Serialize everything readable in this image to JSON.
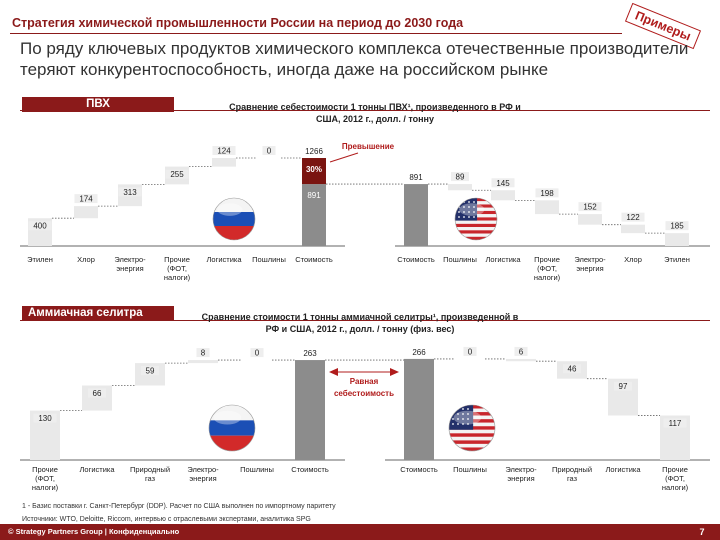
{
  "header": {
    "title": "Стратегия химической промышленности России на период до 2030 года",
    "subtitle": "По ряду ключевых продуктов химического комплекса отечественные производители теряют конкурентоспособность, иногда даже на российском рынке",
    "stamp": "Примеры"
  },
  "sections": {
    "pvc_label": "ПВХ",
    "ammonium_label": "Аммиачная селитра"
  },
  "colors": {
    "brand": "#8b1a1a",
    "bar_light": "#e9e9e9",
    "bar_dark": "#8c8c8c",
    "excess": "#7a1410"
  },
  "icons": [
    "russia-flag-icon",
    "usa-flag-icon"
  ],
  "chart_data": [
    {
      "id": "pvc",
      "type": "waterfall",
      "title": "Сравнение себестоимости 1 тонны ПВХ¹, произведенного в РФ и США, 2012 г., долл. / тонну",
      "annotation": "Превышение",
      "excess_label": "30%",
      "ru": {
        "categories": [
          "Этилен",
          "Хлор",
          "Электро-энергия",
          "Прочие (ФОТ, налоги)",
          "Логистика",
          "Пошлины",
          "Стоимость"
        ],
        "values": [
          400,
          174,
          313,
          255,
          124,
          0,
          1266
        ],
        "total_base": 891,
        "total_excess_label": "30%"
      },
      "us": {
        "categories": [
          "Стоимость",
          "Пошлины",
          "Логистика",
          "Прочие (ФОТ, налоги)",
          "Электро-энергия",
          "Хлор",
          "Этилен"
        ],
        "values": [
          891,
          89,
          145,
          198,
          152,
          122,
          185
        ]
      }
    },
    {
      "id": "ammonium_nitrate",
      "type": "waterfall",
      "title": "Сравнение стоимости 1 тонны аммиачной селитры¹, произведенной в РФ и США, 2012 г., долл. / тонну (физ. вес)",
      "annotation": "Равная себестоимость",
      "ru": {
        "categories": [
          "Прочие (ФОТ, налоги)",
          "Логистика",
          "Природный газ",
          "Электро-энергия",
          "Пошлины",
          "Стоимость"
        ],
        "values": [
          130,
          66,
          59,
          8,
          0,
          263
        ]
      },
      "us": {
        "categories": [
          "Стоимость",
          "Пошлины",
          "Электро-энергия",
          "Природный газ",
          "Логистика",
          "Прочие (ФОТ, налоги)"
        ],
        "values": [
          266,
          0,
          6,
          46,
          97,
          117
        ]
      }
    }
  ],
  "footnote": "1 - Базис поставки г. Санкт-Петербург (DDP). Расчет по США выполнен по импортному паритету",
  "sources": "Источники: WTO, Deloitte, Riccom, интервью с отраслевыми экспертами, аналитика SPG",
  "footer": {
    "text": "© Strategy Partners Group | Конфиденциально",
    "page": "7"
  }
}
